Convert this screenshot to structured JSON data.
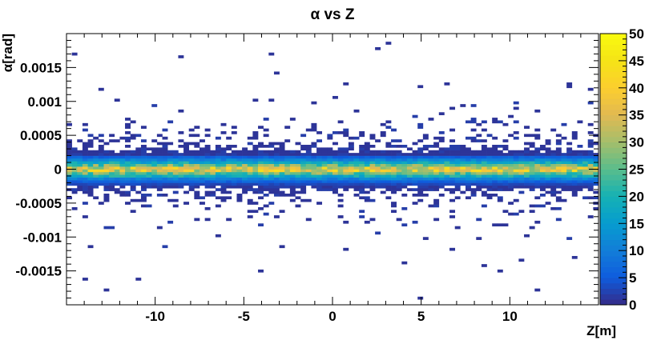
{
  "chart_data": {
    "type": "heatmap",
    "title": "α vs Z",
    "xlabel": "Z[m]",
    "ylabel": "α[rad]",
    "xlim": [
      -15,
      15
    ],
    "ylim": [
      -0.002,
      0.002
    ],
    "x_ticks": [
      -10,
      -5,
      0,
      5,
      10
    ],
    "x_tick_labels": [
      "-10",
      "-5",
      "0",
      "5",
      "10"
    ],
    "y_ticks": [
      -0.0015,
      -0.001,
      -0.0005,
      0,
      0.0005,
      0.001,
      0.0015
    ],
    "y_tick_labels": [
      "-0.0015",
      "-0.001",
      "-0.0005",
      "0",
      "0.0005",
      "0.001",
      "0.0015"
    ],
    "colorbar": {
      "range": [
        0,
        50
      ],
      "ticks": [
        0,
        5,
        10,
        15,
        20,
        25,
        30,
        35,
        40,
        45,
        50
      ],
      "tick_labels": [
        "0",
        "5",
        "10",
        "15",
        "20",
        "25",
        "30",
        "35",
        "40",
        "45",
        "50"
      ]
    },
    "bins": {
      "x_count": 100,
      "y_count": 100
    },
    "band": {
      "center_alpha": 0,
      "peak_count": 40,
      "profile_alpha": [
        0,
        4e-05,
        8e-05,
        0.00012,
        0.00016,
        0.0002,
        0.00024,
        0.00028
      ],
      "profile_count": [
        40,
        30,
        22,
        14,
        8,
        4,
        2,
        1
      ]
    },
    "outliers": [
      {
        "z": -14.5,
        "alpha": 0.0017,
        "count": 1
      },
      {
        "z": -13.0,
        "alpha": 0.0012,
        "count": 1
      },
      {
        "z": -8.5,
        "alpha": 0.00165,
        "count": 1
      },
      {
        "z": -3.5,
        "alpha": 0.0017,
        "count": 1
      },
      {
        "z": -4.5,
        "alpha": 0.001,
        "count": 1
      },
      {
        "z": 0.7,
        "alpha": 0.00125,
        "count": 1
      },
      {
        "z": 2.5,
        "alpha": 0.0018,
        "count": 1
      },
      {
        "z": 3.0,
        "alpha": 0.00185,
        "count": 1
      },
      {
        "z": 6.3,
        "alpha": 0.00128,
        "count": 1
      },
      {
        "z": 14.4,
        "alpha": 0.0012,
        "count": 1
      },
      {
        "z": -14.0,
        "alpha": -0.0016,
        "count": 1
      },
      {
        "z": -12.7,
        "alpha": -0.0018,
        "count": 1
      },
      {
        "z": -11.0,
        "alpha": -0.0016,
        "count": 1
      },
      {
        "z": -4.0,
        "alpha": -0.0015,
        "count": 1
      },
      {
        "z": 4.0,
        "alpha": -0.0014,
        "count": 1
      },
      {
        "z": 5.0,
        "alpha": -0.0019,
        "count": 1
      },
      {
        "z": 9.5,
        "alpha": -0.0015,
        "count": 1
      },
      {
        "z": 11.5,
        "alpha": -0.0018,
        "count": 1
      },
      {
        "z": 13.5,
        "alpha": -0.0013,
        "count": 1
      }
    ]
  }
}
